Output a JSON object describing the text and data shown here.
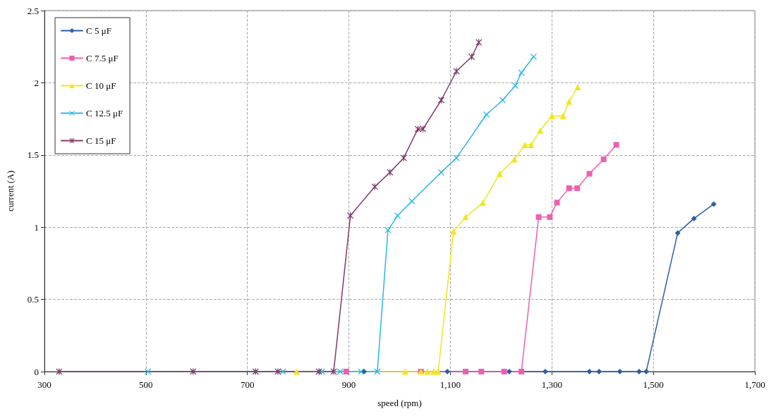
{
  "chart_data": {
    "type": "line",
    "xlabel": "speed (rpm)",
    "ylabel": "current (A)",
    "xlim": [
      300,
      1700
    ],
    "xticks": [
      300,
      500,
      700,
      900,
      {
        "value": 1100,
        "label": "1,100"
      },
      {
        "value": 1300,
        "label": "1,300"
      },
      {
        "value": 1500,
        "label": "1,500"
      },
      {
        "value": 1700,
        "label": "1,700"
      }
    ],
    "ylim": [
      0,
      2.5
    ],
    "yticks": [
      0,
      0.5,
      1,
      1.5,
      2,
      2.5
    ],
    "grid": true,
    "legend": "top left",
    "line_style": "solid",
    "series": [
      {
        "name": "C 5 μF",
        "color": "#2e5fa3",
        "marker": "diamond",
        "x": [
          930,
          1094,
          1216,
          1287,
          1374,
          1393,
          1434,
          1472,
          1486,
          1548,
          1580,
          1619
        ],
        "values": [
          0,
          0,
          0,
          0,
          0,
          0,
          0,
          0,
          0,
          0.96,
          1.06,
          1.16
        ]
      },
      {
        "name": "C 7.5 μF",
        "color": "#ee5fb0",
        "marker": "square",
        "x": [
          895,
          1042,
          1130,
          1161,
          1206,
          1240,
          1274,
          1296,
          1310,
          1334,
          1350,
          1374,
          1402,
          1427
        ],
        "values": [
          0,
          0,
          0,
          0,
          0,
          0,
          1.07,
          1.07,
          1.17,
          1.27,
          1.27,
          1.37,
          1.47,
          1.57
        ]
      },
      {
        "name": "C 10 μF",
        "color": "#f2e51c",
        "marker": "triangle",
        "x": [
          797,
          1011,
          1042,
          1055,
          1067,
          1076,
          1106,
          1130,
          1164,
          1197,
          1226,
          1247,
          1259,
          1277,
          1300,
          1322,
          1334,
          1351
        ],
        "values": [
          0,
          0,
          0,
          0,
          0,
          0,
          0.97,
          1.07,
          1.17,
          1.37,
          1.47,
          1.57,
          1.57,
          1.67,
          1.77,
          1.77,
          1.87,
          1.97
        ]
      },
      {
        "name": "C 12.5 μF",
        "color": "#29b6e8",
        "marker": "cross",
        "x": [
          504,
          770,
          847,
          883,
          924,
          956,
          977,
          996,
          1024,
          1082,
          1112,
          1171,
          1203,
          1228,
          1240,
          1264
        ],
        "values": [
          0,
          0,
          0,
          0,
          0,
          0,
          0.98,
          1.08,
          1.18,
          1.38,
          1.48,
          1.78,
          1.88,
          1.98,
          2.07,
          2.18
        ]
      },
      {
        "name": "C 15 μF",
        "color": "#7f3a6c",
        "marker": "star",
        "x": [
          329,
          593,
          716,
          760,
          841,
          870,
          903,
          951,
          981,
          1008,
          1036,
          1046,
          1082,
          1112,
          1142,
          1156
        ],
        "values": [
          0,
          0,
          0,
          0,
          0,
          0,
          1.08,
          1.28,
          1.38,
          1.48,
          1.68,
          1.68,
          1.88,
          2.08,
          2.18,
          2.28
        ]
      }
    ]
  }
}
